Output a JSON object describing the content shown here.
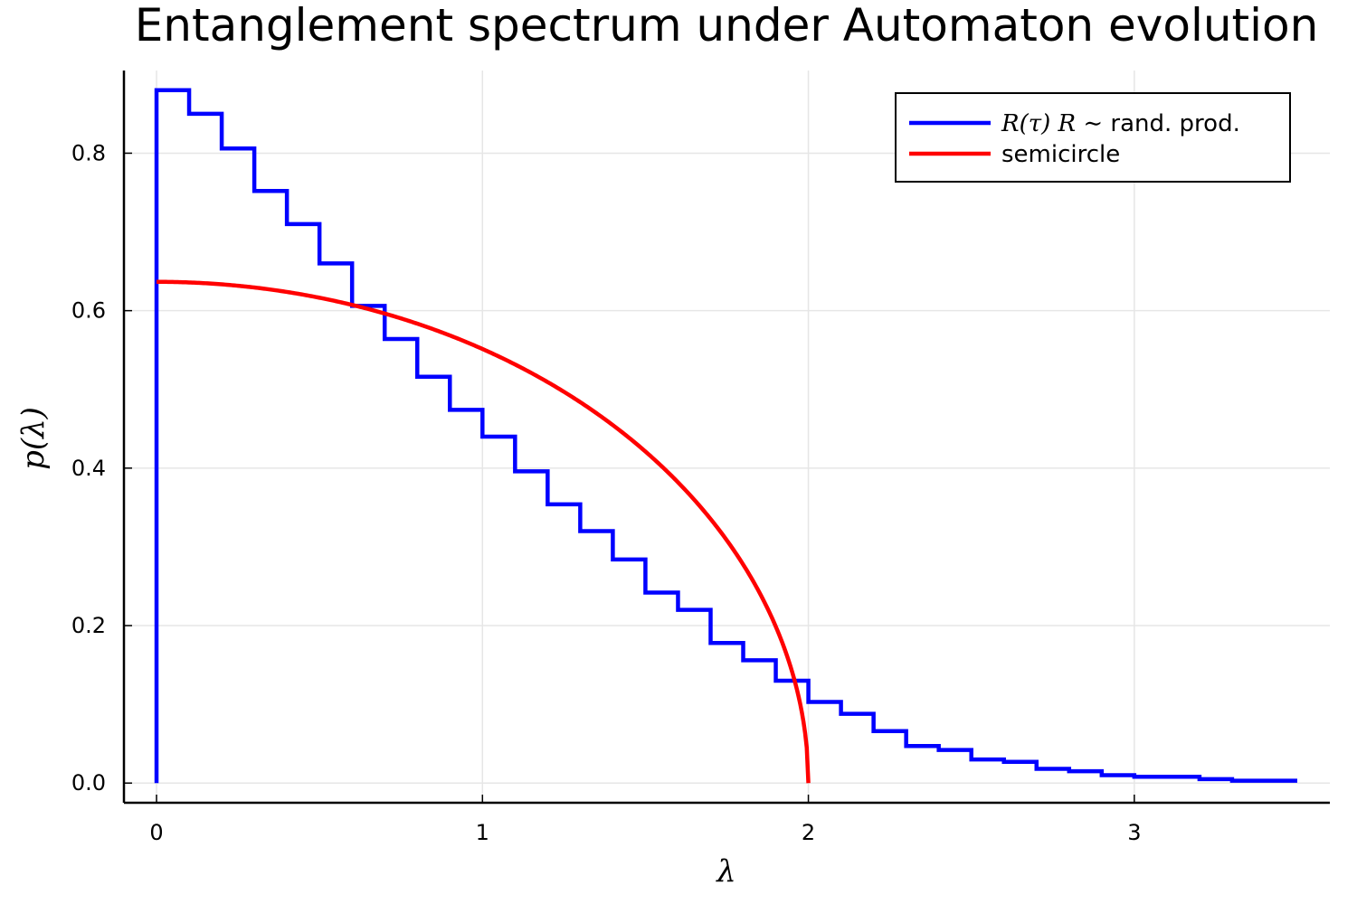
{
  "chart_data": {
    "type": "line",
    "title": "Entanglement spectrum under Automaton evolution",
    "xlabel": "λ",
    "ylabel": "p(λ)",
    "xlim": [
      -0.1,
      3.6
    ],
    "ylim": [
      -0.025,
      0.905
    ],
    "xticks": [
      0,
      1,
      2,
      3
    ],
    "xtick_labels": [
      "0",
      "1",
      "2",
      "3"
    ],
    "yticks": [
      0.0,
      0.2,
      0.4,
      0.6,
      0.8
    ],
    "ytick_labels": [
      "0.0",
      "0.2",
      "0.4",
      "0.6",
      "0.8"
    ],
    "grid": true,
    "legend_position": "top-right",
    "series": [
      {
        "name": "R(τ) R ∼  rand. prod.",
        "name_math": "R(τ) R ∼",
        "name_text": " rand. prod.",
        "kind": "step-histogram",
        "color": "#0000ff",
        "bin_edges": [
          0.0,
          0.1,
          0.2,
          0.3,
          0.4,
          0.5,
          0.6,
          0.7,
          0.8,
          0.9,
          1.0,
          1.1,
          1.2,
          1.3,
          1.4,
          1.5,
          1.6,
          1.7,
          1.8,
          1.9,
          2.0,
          2.1,
          2.2,
          2.3,
          2.4,
          2.5,
          2.6,
          2.7,
          2.8,
          2.9,
          3.0,
          3.1,
          3.2,
          3.3,
          3.4,
          3.5
        ],
        "values": [
          0.88,
          0.85,
          0.806,
          0.752,
          0.71,
          0.66,
          0.606,
          0.564,
          0.516,
          0.474,
          0.44,
          0.396,
          0.354,
          0.32,
          0.284,
          0.242,
          0.22,
          0.178,
          0.156,
          0.13,
          0.103,
          0.088,
          0.066,
          0.047,
          0.042,
          0.03,
          0.027,
          0.018,
          0.015,
          0.01,
          0.008,
          0.008,
          0.005,
          0.003,
          0.003
        ]
      },
      {
        "name": "semicircle",
        "kind": "curve",
        "color": "#ff0000",
        "formula": "p(λ) = sqrt(4 − λ²)/π",
        "x_range": [
          0,
          2
        ]
      }
    ]
  }
}
